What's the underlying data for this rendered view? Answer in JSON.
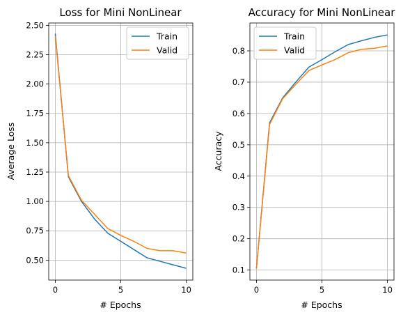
{
  "chart_data": [
    {
      "type": "line",
      "title": "Loss for Mini NonLinear",
      "xlabel": "# Epochs",
      "ylabel": "Average Loss",
      "x": [
        0,
        1,
        2,
        3,
        4,
        5,
        6,
        7,
        8,
        9,
        10
      ],
      "xlim": [
        -0.5,
        10.5
      ],
      "ylim": [
        0.33,
        2.52
      ],
      "xticks": [
        0,
        5,
        10
      ],
      "yticks": [
        0.5,
        0.75,
        1.0,
        1.25,
        1.5,
        1.75,
        2.0,
        2.25,
        2.5
      ],
      "xtick_labels": [
        "0",
        "5",
        "10"
      ],
      "ytick_labels": [
        "0.50",
        "0.75",
        "1.00",
        "1.25",
        "1.50",
        "1.75",
        "2.00",
        "2.25",
        "2.50"
      ],
      "grid": true,
      "legend_position": "upper right",
      "series": [
        {
          "name": "Train",
          "color": "#1f77b4",
          "values": [
            2.43,
            1.21,
            1.0,
            0.85,
            0.73,
            0.66,
            0.59,
            0.52,
            0.49,
            0.46,
            0.43
          ]
        },
        {
          "name": "Valid",
          "color": "#ff7f0e",
          "values": [
            2.41,
            1.22,
            1.01,
            0.89,
            0.77,
            0.71,
            0.66,
            0.6,
            0.58,
            0.58,
            0.56
          ]
        }
      ]
    },
    {
      "type": "line",
      "title": "Accuracy for Mini NonLinear",
      "xlabel": "# Epochs",
      "ylabel": "Accuracy",
      "x": [
        0,
        1,
        2,
        3,
        4,
        5,
        6,
        7,
        8,
        9,
        10
      ],
      "xlim": [
        -0.5,
        10.5
      ],
      "ylim": [
        0.068,
        0.889
      ],
      "xticks": [
        0,
        5,
        10
      ],
      "yticks": [
        0.1,
        0.2,
        0.3,
        0.4,
        0.5,
        0.6,
        0.7,
        0.8
      ],
      "xtick_labels": [
        "0",
        "5",
        "10"
      ],
      "ytick_labels": [
        "0.1",
        "0.2",
        "0.3",
        "0.4",
        "0.5",
        "0.6",
        "0.7",
        "0.8"
      ],
      "grid": true,
      "legend_position": "upper left",
      "series": [
        {
          "name": "Train",
          "color": "#1f77b4",
          "values": [
            0.105,
            0.57,
            0.65,
            0.7,
            0.748,
            0.772,
            0.797,
            0.82,
            0.832,
            0.843,
            0.851
          ]
        },
        {
          "name": "Valid",
          "color": "#ff7f0e",
          "values": [
            0.105,
            0.565,
            0.647,
            0.693,
            0.737,
            0.755,
            0.772,
            0.794,
            0.805,
            0.808,
            0.816
          ]
        }
      ]
    }
  ]
}
